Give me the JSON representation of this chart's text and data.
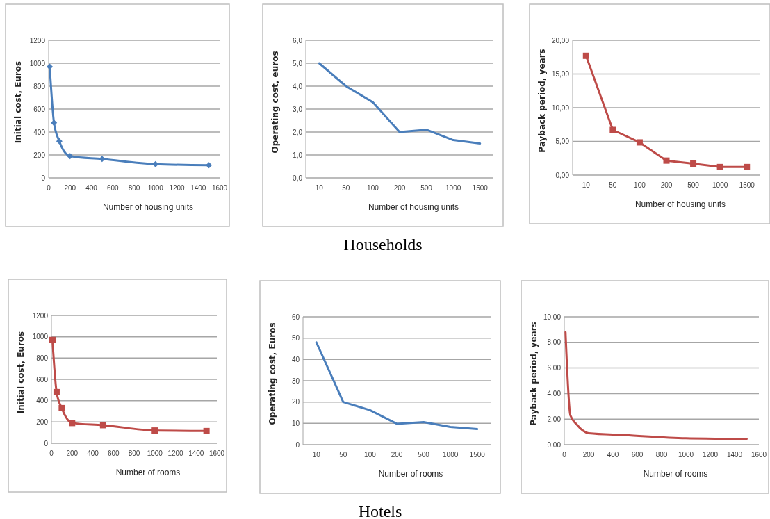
{
  "chart_data": [
    {
      "type": "line",
      "xlabel": "Number of housing units",
      "ylabel": "Initial cost, Euros",
      "x": [
        10,
        50,
        100,
        200,
        500,
        1000,
        1500
      ],
      "series": [
        {
          "color": "#4a7ebb",
          "values": [
            970,
            480,
            320,
            190,
            165,
            120,
            110
          ]
        }
      ],
      "xlim": [
        0,
        1600
      ],
      "xticks": [
        0,
        200,
        400,
        600,
        800,
        1000,
        1200,
        1400,
        1600
      ],
      "ylim": [
        0,
        1200
      ],
      "yticks": [
        0,
        200,
        400,
        600,
        800,
        1000,
        1200
      ],
      "grid": "y",
      "marker": "diamond"
    },
    {
      "type": "line",
      "xlabel": "Number of housing units",
      "ylabel": "Operating cost, euros",
      "categories": [
        "10",
        "50",
        "100",
        "200",
        "500",
        "1000",
        "1500"
      ],
      "series": [
        {
          "color": "#4a7ebb",
          "values": [
            5.0,
            4.0,
            3.3,
            2.0,
            2.1,
            1.65,
            1.5
          ]
        }
      ],
      "ylim": [
        0,
        6
      ],
      "yticks": [
        {
          "value": 0,
          "label": "0,0"
        },
        {
          "value": 1,
          "label": "1,0"
        },
        {
          "value": 2,
          "label": "2,0"
        },
        {
          "value": 3,
          "label": "3,0"
        },
        {
          "value": 4,
          "label": "4,0"
        },
        {
          "value": 5,
          "label": "5,0"
        },
        {
          "value": 6,
          "label": "6,0"
        }
      ],
      "grid": "y",
      "annotations": [
        "Households"
      ]
    },
    {
      "type": "line",
      "xlabel": "Number of housing units",
      "ylabel": "Payback period, years",
      "categories": [
        "10",
        "50",
        "100",
        "200",
        "500",
        "1000",
        "1500"
      ],
      "series": [
        {
          "color": "#be4b48",
          "values": [
            17.7,
            6.7,
            4.85,
            2.15,
            1.7,
            1.2,
            1.2
          ]
        }
      ],
      "ylim": [
        0,
        20
      ],
      "yticks": [
        {
          "value": 0,
          "label": "0,00"
        },
        {
          "value": 5,
          "label": "5,00"
        },
        {
          "value": 10,
          "label": "10,00"
        },
        {
          "value": 15,
          "label": "15,00"
        },
        {
          "value": 20,
          "label": "20,00"
        }
      ],
      "grid": "y",
      "marker": "square"
    },
    {
      "type": "line",
      "xlabel": "Number of rooms",
      "ylabel": "Initial cost, Euros",
      "x": [
        10,
        50,
        100,
        200,
        500,
        1000,
        1500
      ],
      "series": [
        {
          "color": "#be4b48",
          "values": [
            970,
            480,
            330,
            190,
            170,
            120,
            115
          ]
        }
      ],
      "xlim": [
        0,
        1600
      ],
      "xticks": [
        0,
        200,
        400,
        600,
        800,
        1000,
        1200,
        1400,
        1600
      ],
      "ylim": [
        0,
        1200
      ],
      "yticks": [
        0,
        200,
        400,
        600,
        800,
        1000,
        1200
      ],
      "grid": "y",
      "marker": "square"
    },
    {
      "type": "line",
      "xlabel": "Number of rooms",
      "ylabel": "Operating cost, Euros",
      "categories": [
        "10",
        "50",
        "100",
        "200",
        "500",
        "1000",
        "1500"
      ],
      "series": [
        {
          "color": "#4a7ebb",
          "values": [
            48,
            20,
            16.2,
            9.8,
            10.6,
            8.3,
            7.3
          ]
        }
      ],
      "ylim": [
        0,
        60
      ],
      "yticks": [
        0,
        10,
        20,
        30,
        40,
        50,
        60
      ],
      "grid": "y",
      "annotations": [
        "Hotels"
      ]
    },
    {
      "type": "line",
      "xlabel": "Number of rooms",
      "ylabel": "Payback period, years",
      "x": [
        10,
        50,
        100,
        200,
        500,
        1000,
        1500
      ],
      "series": [
        {
          "color": "#be4b48",
          "values": [
            8.8,
            2.3,
            1.6,
            0.9,
            0.75,
            0.5,
            0.45
          ]
        }
      ],
      "xlim": [
        0,
        1600
      ],
      "xticks": [
        0,
        200,
        400,
        600,
        800,
        1000,
        1200,
        1400,
        1600
      ],
      "ylim": [
        0,
        10
      ],
      "yticks": [
        {
          "value": 0,
          "label": "0,00"
        },
        {
          "value": 2,
          "label": "2,00"
        },
        {
          "value": 4,
          "label": "4,00"
        },
        {
          "value": 6,
          "label": "6,00"
        },
        {
          "value": 8,
          "label": "8,00"
        },
        {
          "value": 10,
          "label": "10,00"
        }
      ],
      "grid": "y"
    }
  ]
}
